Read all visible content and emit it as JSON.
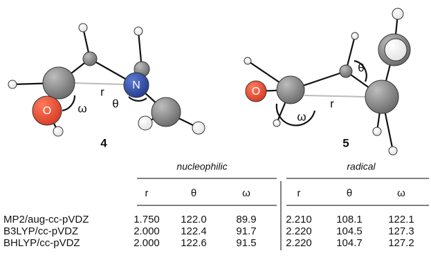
{
  "figure": {
    "molecules": [
      {
        "label": "4",
        "atom_labels": [
          "O",
          "N"
        ],
        "geometry_labels": [
          "r",
          "θ",
          "ω"
        ]
      },
      {
        "label": "5",
        "atom_labels": [
          "O"
        ],
        "geometry_labels": [
          "r",
          "θ",
          "ω"
        ]
      }
    ]
  },
  "table": {
    "groups": [
      "nucleophilic",
      "radical"
    ],
    "columns": [
      "r",
      "θ",
      "ω",
      "r",
      "θ",
      "ω"
    ],
    "rows": [
      {
        "method": "MP2/aug-cc-pVDZ",
        "values": [
          "1.750",
          "122.0",
          "89.9",
          "2.210",
          "108.1",
          "122.1"
        ]
      },
      {
        "method": "B3LYP/cc-pVDZ",
        "values": [
          "2.000",
          "122.4",
          "91.7",
          "2.220",
          "104.5",
          "127.3"
        ]
      },
      {
        "method": "BHLYP/cc-pVDZ",
        "values": [
          "2.000",
          "122.6",
          "91.5",
          "2.220",
          "104.7",
          "127.2"
        ]
      }
    ]
  }
}
